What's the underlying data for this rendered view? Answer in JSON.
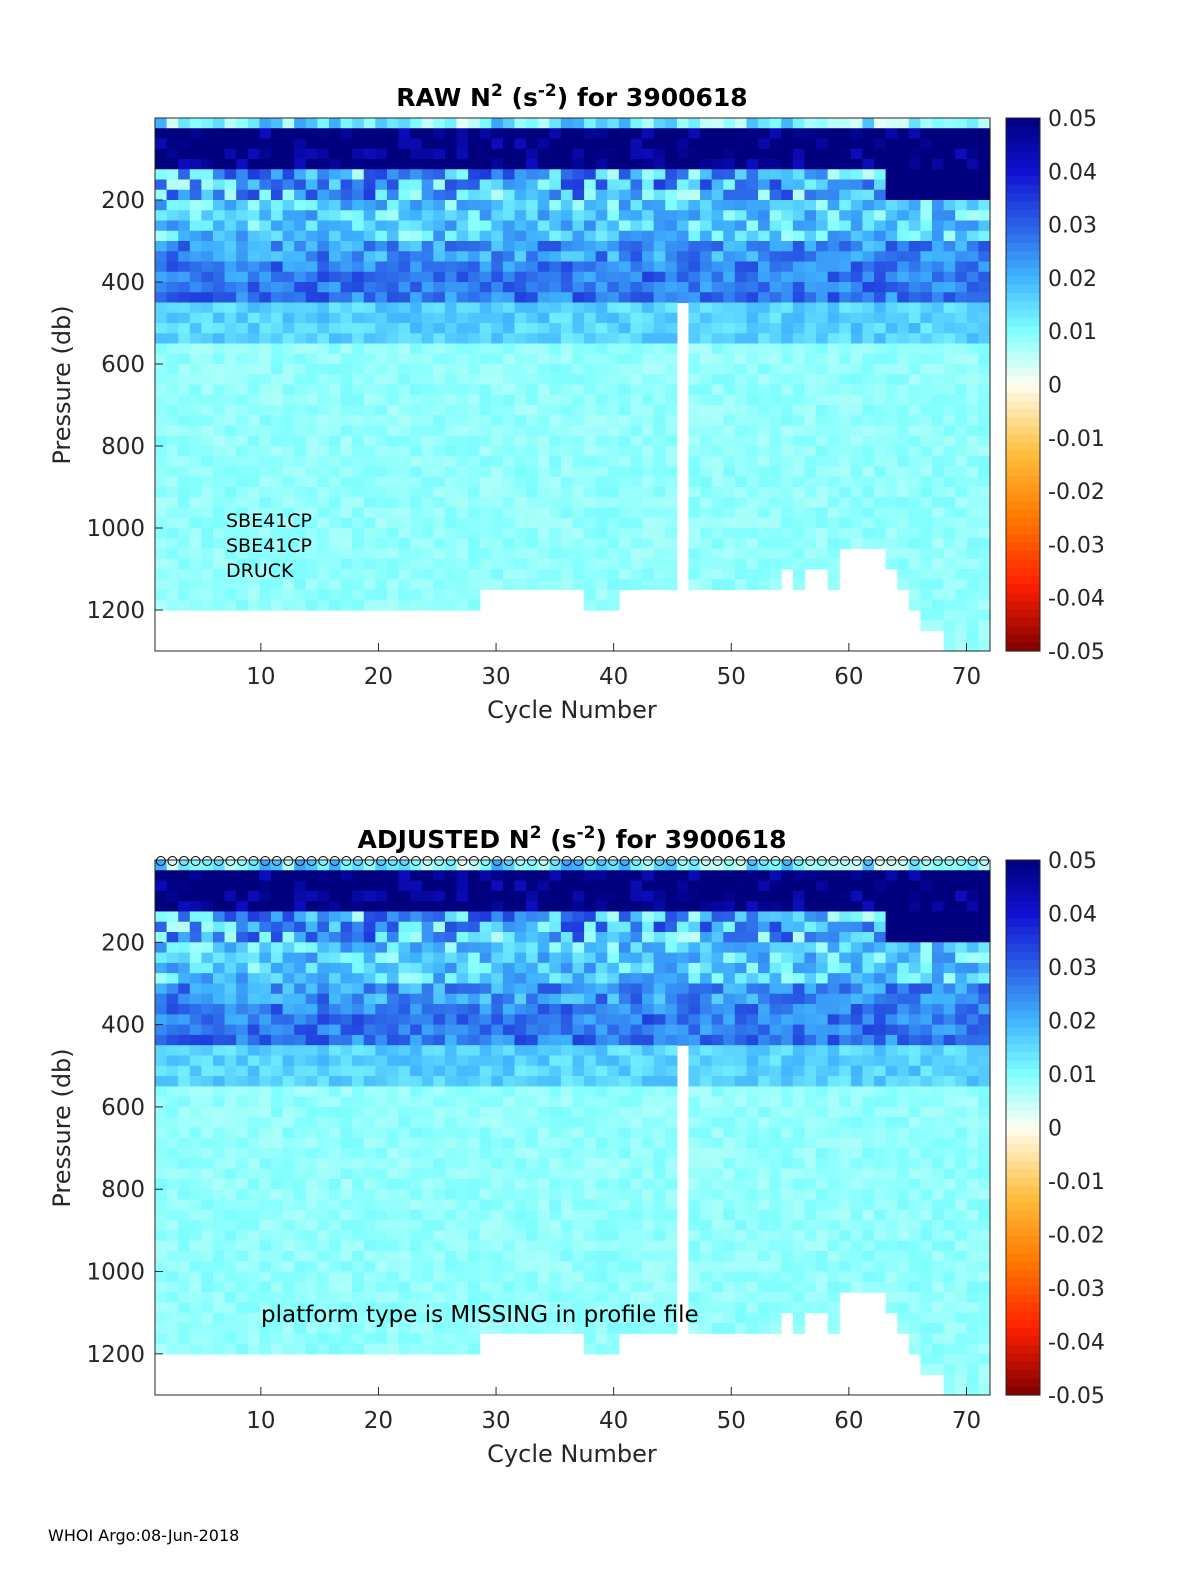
{
  "footer": "WHOI Argo:08-Jun-2018",
  "colormap": {
    "positive": [
      "#fffff0",
      "#80ffff",
      "#40b4ff",
      "#2a5fe6",
      "#1010d0",
      "#00007f"
    ],
    "negative": [
      "#fffff0",
      "#ffc040",
      "#ff7a00",
      "#ff2000",
      "#7f0000"
    ]
  },
  "chart_data": [
    {
      "type": "heatmap",
      "title_main": "RAW N",
      "title_sup1": "2",
      "title_mid": " (s",
      "title_sup2": "-2",
      "title_end": ") for 3900618",
      "xlabel": "Cycle Number",
      "ylabel": "Pressure (db)",
      "xlim": [
        1,
        72
      ],
      "ylim": [
        1300,
        0
      ],
      "xticks": [
        "10",
        "20",
        "30",
        "40",
        "50",
        "60",
        "70"
      ],
      "yticks": [
        "200",
        "400",
        "600",
        "800",
        "1000",
        "1200"
      ],
      "clim": [
        -0.05,
        0.05
      ],
      "colorbar_ticks": [
        "0.05",
        "0.04",
        "0.03",
        "0.02",
        "0.01",
        "0",
        "-0.01",
        "-0.02",
        "-0.03",
        "-0.04",
        "-0.05"
      ],
      "gap_cycle": 46,
      "gap_depth": 450,
      "annotations": [
        "SBE41CP",
        "SBE41CP",
        "DRUCK"
      ],
      "qc_markers": false
    },
    {
      "type": "heatmap",
      "title_main": "ADJUSTED N",
      "title_sup1": "2",
      "title_mid": " (s",
      "title_sup2": "-2",
      "title_end": ") for 3900618",
      "xlabel": "Cycle Number",
      "ylabel": "Pressure (db)",
      "xlim": [
        1,
        72
      ],
      "ylim": [
        1300,
        0
      ],
      "xticks": [
        "10",
        "20",
        "30",
        "40",
        "50",
        "60",
        "70"
      ],
      "yticks": [
        "200",
        "400",
        "600",
        "800",
        "1000",
        "1200"
      ],
      "clim": [
        -0.05,
        0.05
      ],
      "colorbar_ticks": [
        "0.05",
        "0.04",
        "0.03",
        "0.02",
        "0.01",
        "0",
        "-0.01",
        "-0.02",
        "-0.03",
        "-0.04",
        "-0.05"
      ],
      "gap_cycle": 46,
      "gap_depth": 450,
      "annotations": [
        "platform type is MISSING in profile file"
      ],
      "qc_markers": true,
      "qc_marker_symbol": "o"
    }
  ],
  "profile_max_depth": [
    1200,
    1200,
    1200,
    1200,
    1200,
    1200,
    1200,
    1200,
    1200,
    1200,
    1200,
    1200,
    1200,
    1200,
    1200,
    1200,
    1200,
    1200,
    1200,
    1200,
    1200,
    1200,
    1200,
    1200,
    1200,
    1200,
    1200,
    1200,
    1150,
    1150,
    1150,
    1150,
    1150,
    1150,
    1150,
    1150,
    1150,
    1200,
    1200,
    1200,
    1150,
    1150,
    1150,
    1150,
    1150,
    450,
    1150,
    1150,
    1150,
    1150,
    1150,
    1150,
    1150,
    1150,
    1100,
    1150,
    1100,
    1100,
    1150,
    1050,
    1050,
    1050,
    1050,
    1100,
    1150,
    1200,
    1250,
    1250,
    1300,
    1300,
    1300,
    1300
  ]
}
